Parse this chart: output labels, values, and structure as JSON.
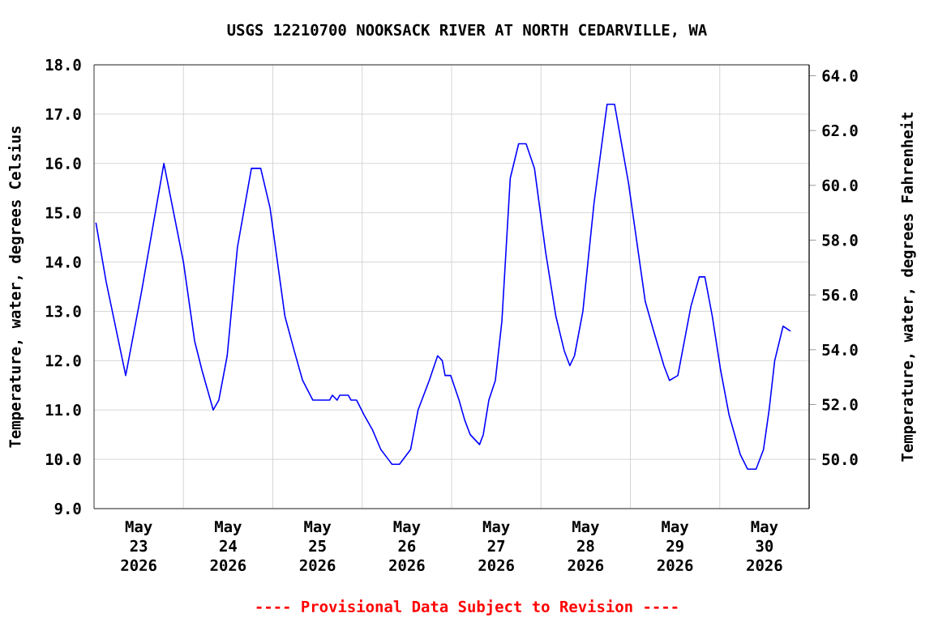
{
  "chart_data": {
    "type": "line",
    "title": "USGS 12210700 NOOKSACK RIVER AT NORTH CEDARVILLE, WA",
    "ylabel": "Temperature, water, degrees Celsius",
    "y2label": "Temperature, water, degrees Fahrenheit",
    "annotations": [
      "---- Provisional Data Subject to Revision ----"
    ],
    "series": [
      {
        "color": "#0000ff",
        "x": [
          "2026-05-23T00:30",
          "2026-05-23T03:15",
          "2026-05-23T08:30",
          "2026-05-23T12:45",
          "2026-05-23T18:45",
          "2026-05-24T00:00",
          "2026-05-24T03:00",
          "2026-05-24T05:00",
          "2026-05-24T08:00",
          "2026-05-24T09:30",
          "2026-05-24T11:45",
          "2026-05-24T14:30",
          "2026-05-24T18:15",
          "2026-05-24T20:45",
          "2026-05-24T23:15",
          "2026-05-25T03:15",
          "2026-05-25T05:45",
          "2026-05-25T08:00",
          "2026-05-25T10:45",
          "2026-05-25T15:15",
          "2026-05-25T16:00",
          "2026-05-25T17:15",
          "2026-05-25T18:00",
          "2026-05-25T20:15",
          "2026-05-25T21:00",
          "2026-05-25T22:30",
          "2026-05-26T00:30",
          "2026-05-26T02:45",
          "2026-05-26T05:00",
          "2026-05-26T07:00",
          "2026-05-26T08:00",
          "2026-05-26T10:00",
          "2026-05-26T13:00",
          "2026-05-26T15:00",
          "2026-05-26T18:00",
          "2026-05-26T20:15",
          "2026-05-26T21:30",
          "2026-05-26T22:15",
          "2026-05-26T23:45",
          "2026-05-27T02:00",
          "2026-05-27T03:30",
          "2026-05-27T05:00",
          "2026-05-27T07:30",
          "2026-05-27T08:30",
          "2026-05-27T10:00",
          "2026-05-27T11:45",
          "2026-05-27T13:30",
          "2026-05-27T15:45",
          "2026-05-27T18:00",
          "2026-05-27T20:00",
          "2026-05-27T22:15",
          "2026-05-28T01:15",
          "2026-05-28T04:00",
          "2026-05-28T06:15",
          "2026-05-28T07:45",
          "2026-05-28T09:00",
          "2026-05-28T11:15",
          "2026-05-28T14:15",
          "2026-05-28T17:45",
          "2026-05-28T19:45",
          "2026-05-28T23:30",
          "2026-05-29T04:00",
          "2026-05-29T06:15",
          "2026-05-29T09:00",
          "2026-05-29T10:30",
          "2026-05-29T12:45",
          "2026-05-29T16:15",
          "2026-05-29T18:30",
          "2026-05-29T20:00",
          "2026-05-29T22:00",
          "2026-05-30T00:15",
          "2026-05-30T02:30",
          "2026-05-30T05:30",
          "2026-05-30T07:30",
          "2026-05-30T09:45",
          "2026-05-30T11:45",
          "2026-05-30T13:15",
          "2026-05-30T14:45",
          "2026-05-30T17:00",
          "2026-05-30T19:00"
        ],
        "values": [
          14.8,
          13.6,
          11.7,
          13.4,
          16.0,
          14.0,
          12.4,
          11.8,
          11.0,
          11.2,
          12.1,
          14.3,
          15.9,
          15.9,
          15.1,
          12.9,
          12.2,
          11.6,
          11.2,
          11.2,
          11.3,
          11.2,
          11.3,
          11.3,
          11.2,
          11.2,
          10.9,
          10.6,
          10.2,
          10.0,
          9.9,
          9.9,
          10.2,
          11.0,
          11.6,
          12.1,
          12.0,
          11.7,
          11.7,
          11.2,
          10.8,
          10.5,
          10.3,
          10.5,
          11.2,
          11.6,
          12.8,
          15.7,
          16.4,
          16.4,
          15.9,
          14.2,
          12.9,
          12.2,
          11.9,
          12.1,
          13.0,
          15.2,
          17.2,
          17.2,
          15.6,
          13.2,
          12.6,
          11.9,
          11.6,
          11.7,
          13.1,
          13.7,
          13.7,
          12.9,
          11.8,
          10.9,
          10.1,
          9.8,
          9.8,
          10.2,
          11.0,
          12.0,
          12.7,
          12.6
        ]
      }
    ],
    "xlim": [
      "2026-05-23T00:00",
      "2026-05-31T00:00"
    ],
    "xticks": [
      {
        "value": "2026-05-23T12:00",
        "label": "May 23 2026"
      },
      {
        "value": "2026-05-24T12:00",
        "label": "May 24 2026"
      },
      {
        "value": "2026-05-25T12:00",
        "label": "May 25 2026"
      },
      {
        "value": "2026-05-26T12:00",
        "label": "May 26 2026"
      },
      {
        "value": "2026-05-27T12:00",
        "label": "May 27 2026"
      },
      {
        "value": "2026-05-28T12:00",
        "label": "May 28 2026"
      },
      {
        "value": "2026-05-29T12:00",
        "label": "May 29 2026"
      },
      {
        "value": "2026-05-30T12:00",
        "label": "May 30 2026"
      },
      {
        "value": "2026-05-24T00:00",
        "label": null
      },
      {
        "value": "2026-05-25T00:00",
        "label": null
      },
      {
        "value": "2026-05-26T00:00",
        "label": null
      },
      {
        "value": "2026-05-27T00:00",
        "label": null
      },
      {
        "value": "2026-05-28T00:00",
        "label": null
      },
      {
        "value": "2026-05-29T00:00",
        "label": null
      },
      {
        "value": "2026-05-30T00:00",
        "label": null
      }
    ],
    "ylim": [
      9.0,
      18.0
    ],
    "yticks": [
      {
        "value": 9,
        "label": "9.0"
      },
      {
        "value": 10,
        "label": "10.0"
      },
      {
        "value": 11,
        "label": "11.0"
      },
      {
        "value": 12,
        "label": "12.0"
      },
      {
        "value": 13,
        "label": "13.0"
      },
      {
        "value": 14,
        "label": "14.0"
      },
      {
        "value": 15,
        "label": "15.0"
      },
      {
        "value": 16,
        "label": "16.0"
      },
      {
        "value": 17,
        "label": "17.0"
      },
      {
        "value": 18,
        "label": "18.0"
      }
    ],
    "y2lim": [
      48.2,
      64.4
    ],
    "y2ticks": [
      {
        "value": 50,
        "label": "50.0"
      },
      {
        "value": 52,
        "label": "52.0"
      },
      {
        "value": 54,
        "label": "54.0"
      },
      {
        "value": 56,
        "label": "56.0"
      },
      {
        "value": 58,
        "label": "58.0"
      },
      {
        "value": 60,
        "label": "60.0"
      },
      {
        "value": 62,
        "label": "62.0"
      },
      {
        "value": 64,
        "label": "64.0"
      }
    ],
    "grid": true,
    "marker": "none",
    "line_style": "solid"
  }
}
